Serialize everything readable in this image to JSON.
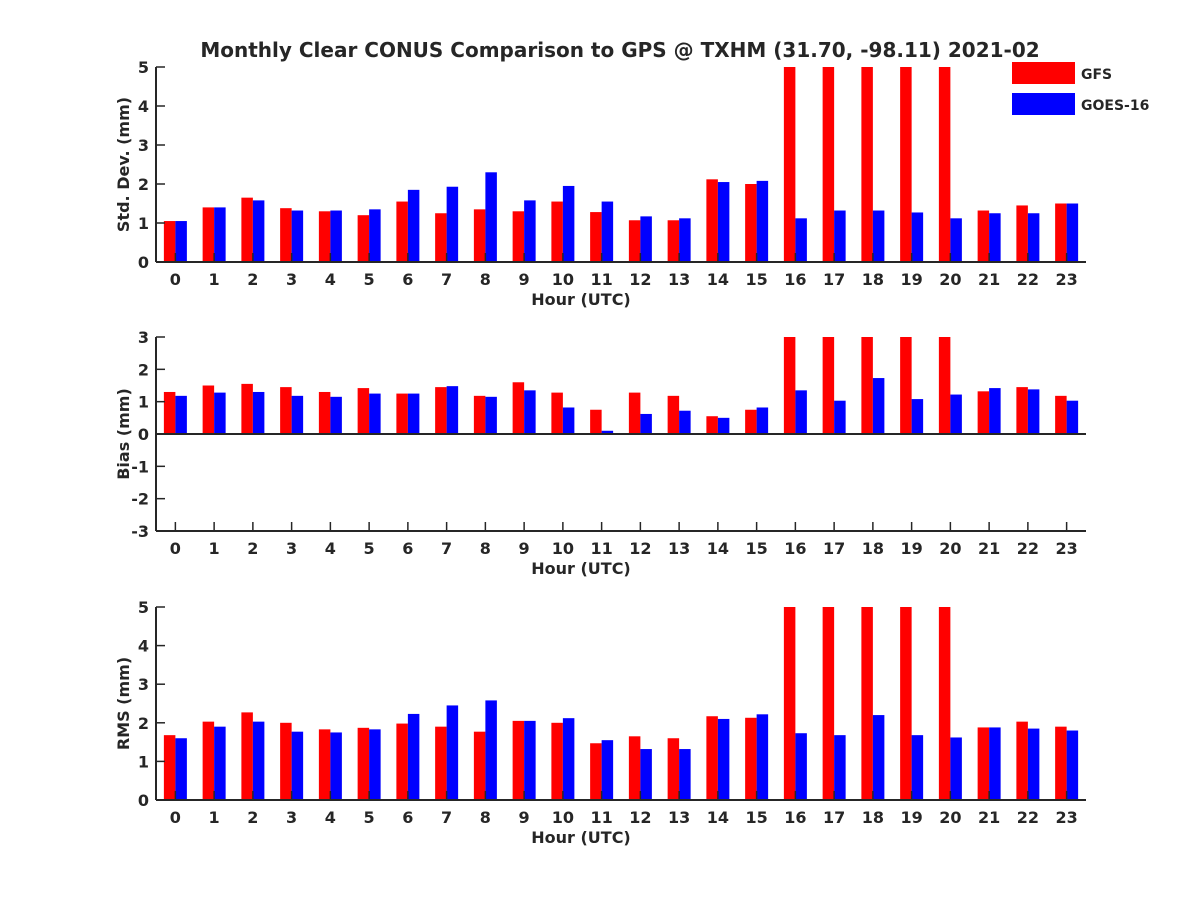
{
  "title": "Monthly Clear CONUS Comparison to GPS @ TXHM (31.70, -98.11) 2021-02",
  "legend": {
    "placement": "top-right",
    "entries": [
      {
        "name": "GFS",
        "color": "#ff0000"
      },
      {
        "name": "GOES-16",
        "color": "#0000ff"
      }
    ]
  },
  "chart_data": [
    {
      "type": "bar",
      "xlabel": "Hour (UTC)",
      "ylabel": "Std. Dev. (mm)",
      "ylim": [
        0,
        5
      ],
      "yticks": [
        "0",
        "1",
        "2",
        "3",
        "4",
        "5"
      ],
      "categories": [
        "0",
        "1",
        "2",
        "3",
        "4",
        "5",
        "6",
        "7",
        "8",
        "9",
        "10",
        "11",
        "12",
        "13",
        "14",
        "15",
        "16",
        "17",
        "18",
        "19",
        "20",
        "21",
        "22",
        "23"
      ],
      "series": [
        {
          "name": "GFS",
          "color": "#ff0000",
          "values": [
            1.05,
            1.4,
            1.65,
            1.38,
            1.3,
            1.2,
            1.55,
            1.25,
            1.35,
            1.3,
            1.55,
            1.28,
            1.07,
            1.07,
            2.12,
            2.0,
            5,
            5,
            5,
            5,
            5,
            1.32,
            1.45,
            1.5
          ]
        },
        {
          "name": "GOES-16",
          "color": "#0000ff",
          "values": [
            1.05,
            1.4,
            1.58,
            1.32,
            1.32,
            1.35,
            1.85,
            1.93,
            2.3,
            1.58,
            1.95,
            1.55,
            1.17,
            1.12,
            2.05,
            2.08,
            1.12,
            1.32,
            1.32,
            1.27,
            1.12,
            1.25,
            1.25,
            1.5
          ]
        }
      ]
    },
    {
      "type": "bar",
      "xlabel": "Hour (UTC)",
      "ylabel": "Bias (mm)",
      "ylim": [
        -3,
        3
      ],
      "yticks": [
        "-3",
        "-2",
        "-1",
        "0",
        "1",
        "2",
        "3"
      ],
      "categories": [
        "0",
        "1",
        "2",
        "3",
        "4",
        "5",
        "6",
        "7",
        "8",
        "9",
        "10",
        "11",
        "12",
        "13",
        "14",
        "15",
        "16",
        "17",
        "18",
        "19",
        "20",
        "21",
        "22",
        "23"
      ],
      "series": [
        {
          "name": "GFS",
          "color": "#ff0000",
          "values": [
            1.3,
            1.5,
            1.55,
            1.45,
            1.3,
            1.42,
            1.25,
            1.45,
            1.18,
            1.6,
            1.28,
            0.75,
            1.28,
            1.18,
            0.55,
            0.75,
            3,
            3,
            3,
            3,
            3,
            1.32,
            1.45,
            1.18
          ]
        },
        {
          "name": "GOES-16",
          "color": "#0000ff",
          "values": [
            1.18,
            1.28,
            1.3,
            1.18,
            1.15,
            1.25,
            1.25,
            1.48,
            1.15,
            1.35,
            0.82,
            0.1,
            0.62,
            0.72,
            0.5,
            0.82,
            1.35,
            1.03,
            1.73,
            1.08,
            1.22,
            1.42,
            1.38,
            1.03
          ]
        }
      ]
    },
    {
      "type": "bar",
      "xlabel": "Hour (UTC)",
      "ylabel": "RMS (mm)",
      "ylim": [
        0,
        5
      ],
      "yticks": [
        "0",
        "1",
        "2",
        "3",
        "4",
        "5"
      ],
      "categories": [
        "0",
        "1",
        "2",
        "3",
        "4",
        "5",
        "6",
        "7",
        "8",
        "9",
        "10",
        "11",
        "12",
        "13",
        "14",
        "15",
        "16",
        "17",
        "18",
        "19",
        "20",
        "21",
        "22",
        "23"
      ],
      "series": [
        {
          "name": "GFS",
          "color": "#ff0000",
          "values": [
            1.68,
            2.03,
            2.27,
            2.0,
            1.83,
            1.87,
            1.98,
            1.9,
            1.77,
            2.05,
            2.0,
            1.47,
            1.65,
            1.6,
            2.17,
            2.13,
            5,
            5,
            5,
            5,
            5,
            1.88,
            2.03,
            1.9
          ]
        },
        {
          "name": "GOES-16",
          "color": "#0000ff",
          "values": [
            1.6,
            1.9,
            2.03,
            1.77,
            1.75,
            1.83,
            2.23,
            2.45,
            2.58,
            2.05,
            2.12,
            1.55,
            1.32,
            1.32,
            2.1,
            2.22,
            1.73,
            1.68,
            2.2,
            1.68,
            1.62,
            1.88,
            1.85,
            1.8
          ]
        }
      ]
    }
  ]
}
